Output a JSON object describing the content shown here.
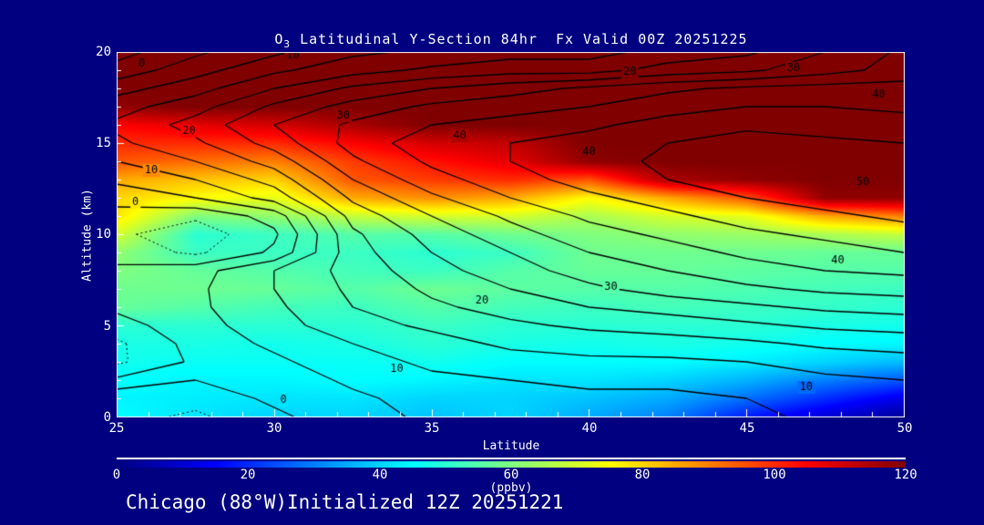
{
  "page": {
    "background": "#000080",
    "text_color": "#ffffff",
    "frame_color": "#ffffff",
    "contour_color": "#000000"
  },
  "title": {
    "prefix": "O",
    "subscript": "3",
    "rest": " Latitudinal Y-Section 84hr  Fx Valid 00Z 20251225"
  },
  "footer": {
    "text": "Chicago (88°W)Initialized 12Z 20251221"
  },
  "chart_data": {
    "type": "heatmap",
    "title": "O3 Latitudinal Y-Section 84hr  Fx Valid 00Z 20251225",
    "xlabel": "Latitude",
    "ylabel": "Altitude (km)",
    "xlim": [
      25,
      50
    ],
    "ylim": [
      0,
      20
    ],
    "x_ticks": [
      25,
      30,
      35,
      40,
      45,
      50
    ],
    "y_ticks": [
      0,
      5,
      10,
      15,
      20
    ],
    "grid": false,
    "colorbar": {
      "min": 0,
      "max": 120,
      "ticks": [
        0,
        20,
        40,
        60,
        80,
        100,
        120
      ],
      "units": "(ppbv)",
      "colormap": "jet"
    },
    "fill": {
      "description": "Ozone mixing ratio (ppbv) shaded field; rows = altitude 0..20 km ascending, cols = latitude 25..50 step 2.5",
      "lats": [
        25,
        27.5,
        30,
        32.5,
        35,
        37.5,
        40,
        42.5,
        45,
        47.5,
        50
      ],
      "alts": [
        0,
        1,
        2,
        3,
        4,
        5,
        6,
        7,
        8,
        9,
        10,
        11,
        12,
        13,
        14,
        15,
        16,
        17,
        18,
        19,
        20
      ],
      "values_ppbv": [
        [
          45,
          42,
          40,
          40,
          38,
          40,
          35,
          30,
          18,
          10,
          3
        ],
        [
          44,
          43,
          42,
          42,
          40,
          40,
          38,
          35,
          28,
          20,
          12
        ],
        [
          45,
          44,
          44,
          45,
          44,
          42,
          42,
          40,
          36,
          30,
          25
        ],
        [
          47,
          46,
          46,
          46,
          47,
          45,
          45,
          45,
          43,
          40,
          37
        ],
        [
          48,
          48,
          47,
          48,
          50,
          48,
          47,
          48,
          47,
          45,
          44
        ],
        [
          50,
          50,
          50,
          50,
          52,
          50,
          50,
          50,
          50,
          48,
          47
        ],
        [
          57,
          55,
          53,
          52,
          55,
          53,
          52,
          53,
          52,
          51,
          50
        ],
        [
          58,
          58,
          57,
          55,
          58,
          56,
          55,
          55,
          54,
          53,
          52
        ],
        [
          60,
          57,
          55,
          53,
          52,
          55,
          57,
          57,
          56,
          55,
          55
        ],
        [
          62,
          52,
          52,
          52,
          50,
          52,
          58,
          58,
          58,
          57,
          57
        ],
        [
          70,
          50,
          52,
          55,
          55,
          58,
          60,
          62,
          63,
          65,
          68
        ],
        [
          78,
          60,
          62,
          68,
          70,
          70,
          65,
          70,
          72,
          85,
          90
        ],
        [
          80,
          75,
          72,
          85,
          88,
          85,
          75,
          85,
          95,
          118,
          118
        ],
        [
          85,
          82,
          80,
          95,
          98,
          100,
          95,
          115,
          118,
          120,
          120
        ],
        [
          95,
          92,
          90,
          98,
          103,
          108,
          118,
          120,
          120,
          120,
          120
        ],
        [
          100,
          100,
          100,
          105,
          110,
          112,
          120,
          120,
          120,
          120,
          120
        ],
        [
          105,
          108,
          110,
          115,
          120,
          120,
          120,
          120,
          120,
          120,
          120
        ],
        [
          118,
          120,
          120,
          120,
          120,
          120,
          120,
          120,
          120,
          120,
          120
        ],
        [
          120,
          120,
          120,
          120,
          120,
          120,
          120,
          120,
          120,
          120,
          120
        ],
        [
          120,
          120,
          120,
          120,
          120,
          120,
          120,
          120,
          120,
          120,
          120
        ],
        [
          120,
          120,
          120,
          120,
          120,
          120,
          120,
          120,
          120,
          120,
          120
        ]
      ]
    },
    "contours": {
      "description": "Overlaid line-contour field; solid lines >= 0, dotted lines < 0; labels every 10 units",
      "levels": {
        "min": -10,
        "max": 55,
        "step": 5
      },
      "label_levels": [
        0,
        10,
        20,
        30,
        40,
        50
      ],
      "negative_style": "dotted",
      "values": [
        [
          -3,
          -6,
          -1,
          3,
          6,
          7,
          8,
          8,
          9,
          11,
          12
        ],
        [
          -1,
          -3,
          1,
          4,
          7,
          8,
          9,
          9,
          10,
          12,
          13
        ],
        [
          1,
          0,
          2,
          6,
          9,
          10,
          11,
          11,
          12,
          14,
          15
        ],
        [
          -6,
          1,
          4,
          8,
          11,
          13,
          14,
          14,
          15,
          17,
          18
        ],
        [
          -6,
          2,
          6,
          10,
          13,
          16,
          17,
          18,
          19,
          21,
          22
        ],
        [
          -2,
          3,
          8,
          13,
          16,
          19,
          21,
          22,
          24,
          26,
          27
        ],
        [
          1,
          4,
          9,
          15,
          19,
          22,
          25,
          27,
          29,
          31,
          32
        ],
        [
          2,
          4,
          10,
          16,
          21,
          25,
          29,
          32,
          34,
          36,
          37
        ],
        [
          1,
          3,
          10,
          17,
          23,
          28,
          32,
          35,
          38,
          40,
          41
        ],
        [
          -2,
          -6,
          1,
          18,
          25,
          30,
          35,
          38,
          41,
          43,
          45
        ],
        [
          -4,
          -8,
          -1,
          19,
          27,
          33,
          38,
          41,
          44,
          46,
          48
        ],
        [
          -2,
          -4,
          2,
          22,
          30,
          36,
          41,
          44,
          47,
          49,
          51
        ],
        [
          2,
          5,
          12,
          26,
          34,
          40,
          44,
          47,
          50,
          52,
          53
        ],
        [
          6,
          10,
          17,
          30,
          38,
          43,
          47,
          50,
          52,
          54,
          54
        ],
        [
          10,
          15,
          22,
          34,
          41,
          45,
          48,
          51,
          53,
          53,
          52
        ],
        [
          14,
          19,
          27,
          37,
          43,
          45,
          47,
          50,
          52,
          51,
          50
        ],
        [
          16,
          22,
          30,
          36,
          40,
          42,
          44,
          47,
          49,
          48,
          47
        ],
        [
          13,
          18,
          26,
          32,
          36,
          38,
          40,
          43,
          45,
          45,
          44
        ],
        [
          8,
          13,
          20,
          26,
          30,
          33,
          36,
          39,
          41,
          42,
          42
        ],
        [
          2,
          8,
          14,
          18,
          21,
          23,
          23,
          27,
          29,
          33,
          37
        ],
        [
          -2,
          4,
          9,
          14,
          16,
          18,
          18,
          22,
          24,
          30,
          36
        ]
      ],
      "labels": [
        {
          "v": 0,
          "lat": 25.8,
          "alt": 19.35
        },
        {
          "v": 10,
          "lat": 30.6,
          "alt": 19.8
        },
        {
          "v": 20,
          "lat": 41.3,
          "alt": 18.9
        },
        {
          "v": 30,
          "lat": 46.5,
          "alt": 19.1
        },
        {
          "v": 40,
          "lat": 49.2,
          "alt": 17.65
        },
        {
          "v": 20,
          "lat": 27.3,
          "alt": 15.65
        },
        {
          "v": 30,
          "lat": 32.2,
          "alt": 16.5
        },
        {
          "v": 40,
          "lat": 35.9,
          "alt": 15.4
        },
        {
          "v": 40,
          "lat": 40.0,
          "alt": 14.5
        },
        {
          "v": 50,
          "lat": 48.7,
          "alt": 12.85
        },
        {
          "v": 10,
          "lat": 26.1,
          "alt": 13.5
        },
        {
          "v": 0,
          "lat": 25.6,
          "alt": 11.75
        },
        {
          "v": 20,
          "lat": 36.6,
          "alt": 6.35
        },
        {
          "v": 30,
          "lat": 40.7,
          "alt": 7.1
        },
        {
          "v": 40,
          "lat": 47.9,
          "alt": 8.55
        },
        {
          "v": 10,
          "lat": 33.9,
          "alt": 2.6
        },
        {
          "v": 0,
          "lat": 30.3,
          "alt": 0.9
        },
        {
          "v": 10,
          "lat": 46.9,
          "alt": 1.6
        }
      ]
    }
  }
}
